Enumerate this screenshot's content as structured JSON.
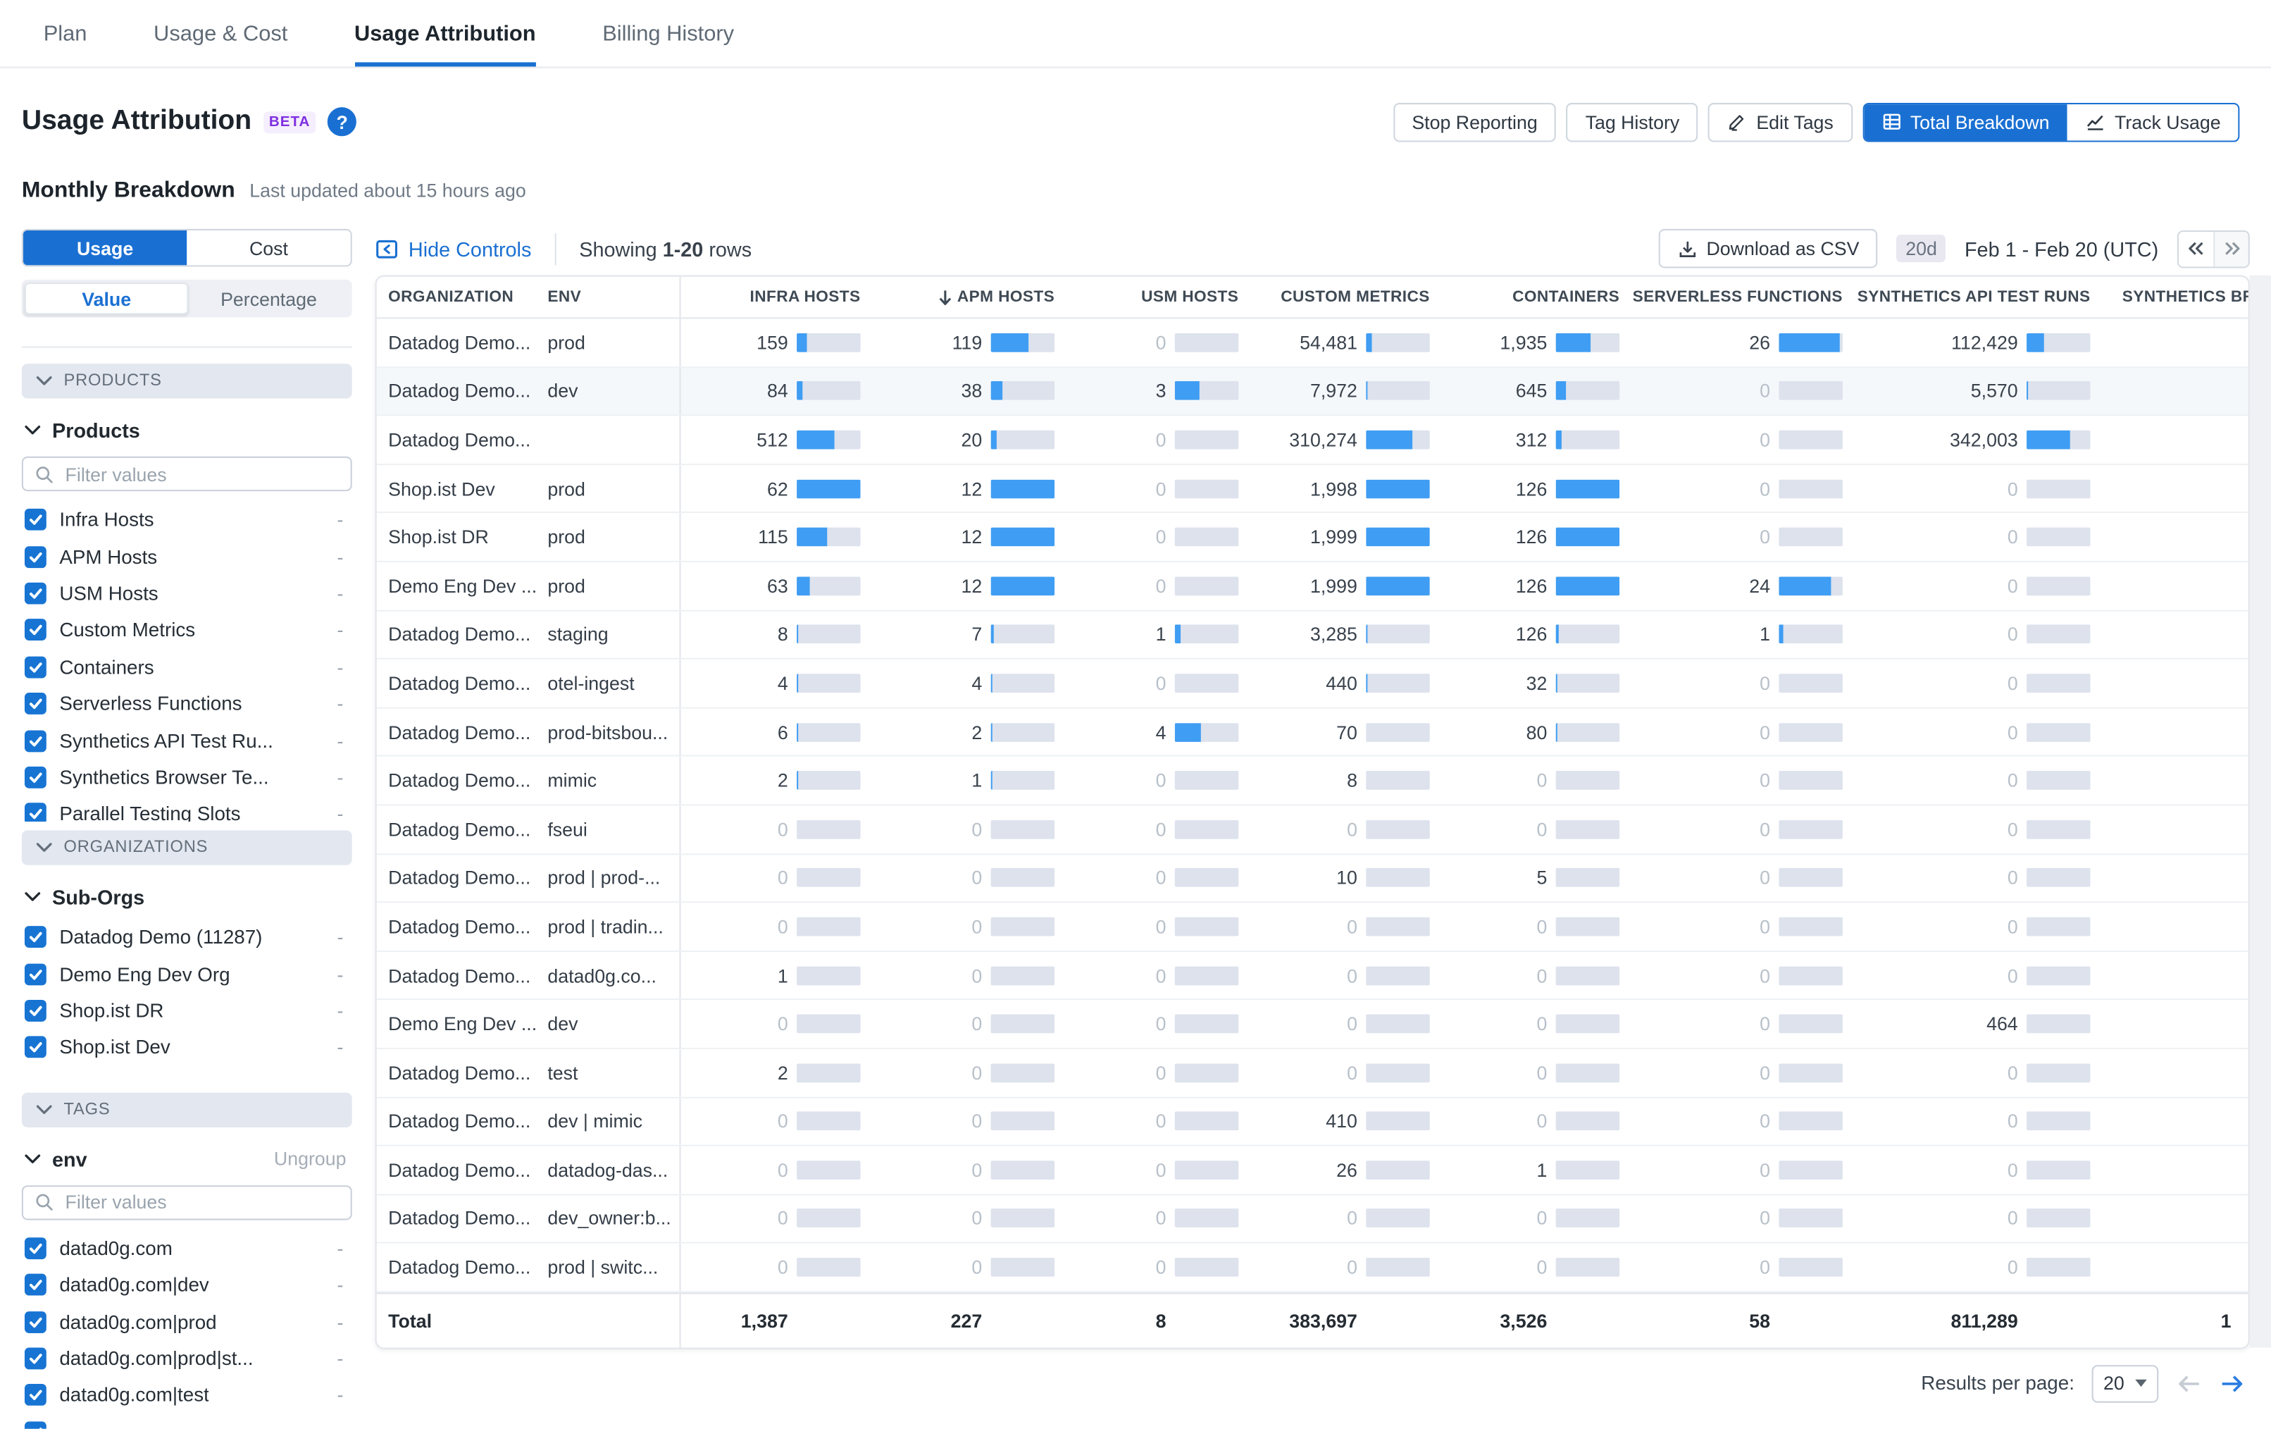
{
  "nav": {
    "tabs": [
      {
        "label": "Plan",
        "active": false
      },
      {
        "label": "Usage & Cost",
        "active": false
      },
      {
        "label": "Usage Attribution",
        "active": true
      },
      {
        "label": "Billing History",
        "active": false
      }
    ]
  },
  "header": {
    "title": "Usage Attribution",
    "beta_badge": "BETA",
    "actions": {
      "stop_reporting": "Stop Reporting",
      "tag_history": "Tag History",
      "edit_tags": "Edit Tags",
      "total_breakdown": "Total Breakdown",
      "track_usage": "Track Usage"
    }
  },
  "subheader": {
    "title": "Monthly Breakdown",
    "last_updated": "Last updated about 15 hours ago"
  },
  "controls": {
    "hide_controls": "Hide Controls",
    "showing_prefix": "Showing",
    "showing_range": "1-20",
    "showing_suffix": "rows",
    "download_csv": "Download as CSV",
    "period_badge": "20d",
    "date_range": "Feb 1 - Feb 20 (UTC)"
  },
  "sidebar": {
    "mode_toggle": {
      "active": "Usage",
      "inactive": "Cost"
    },
    "display_toggle": {
      "active": "Value",
      "inactive": "Percentage"
    },
    "sections": {
      "products_header": "PRODUCTS",
      "organizations_header": "ORGANIZATIONS",
      "tags_header": "TAGS"
    },
    "products": {
      "title": "Products",
      "filter_placeholder": "Filter values",
      "items": [
        {
          "label": "Infra Hosts",
          "dash": "-"
        },
        {
          "label": "APM Hosts",
          "dash": "-"
        },
        {
          "label": "USM Hosts",
          "dash": "-"
        },
        {
          "label": "Custom Metrics",
          "dash": "-"
        },
        {
          "label": "Containers",
          "dash": "-"
        },
        {
          "label": "Serverless Functions",
          "dash": "-"
        },
        {
          "label": "Synthetics API Test Ru...",
          "dash": "-"
        },
        {
          "label": "Synthetics Browser Te...",
          "dash": "-"
        },
        {
          "label": "Parallel Testing Slots",
          "dash": "-"
        }
      ]
    },
    "orgs": {
      "title": "Sub-Orgs",
      "items": [
        {
          "label": "Datadog Demo (11287)",
          "dash": "-"
        },
        {
          "label": "Demo Eng Dev Org",
          "dash": "-"
        },
        {
          "label": "Shop.ist DR",
          "dash": "-"
        },
        {
          "label": "Shop.ist Dev",
          "dash": "-"
        }
      ]
    },
    "envs": {
      "title": "env",
      "ungroup": "Ungroup",
      "filter_placeholder": "Filter values",
      "items": [
        {
          "label": "datad0g.com",
          "dash": "-"
        },
        {
          "label": "datad0g.com|dev",
          "dash": "-"
        },
        {
          "label": "datad0g.com|prod",
          "dash": "-"
        },
        {
          "label": "datad0g.com|prod|st...",
          "dash": "-"
        },
        {
          "label": "datad0g.com|test",
          "dash": "-"
        },
        {
          "label": "",
          "dash": ""
        }
      ]
    }
  },
  "table": {
    "columns": [
      {
        "label": "ORGANIZATION",
        "align": "left"
      },
      {
        "label": "ENV",
        "align": "left"
      },
      {
        "label": "INFRA HOSTS"
      },
      {
        "label": "APM HOSTS",
        "sorted": true
      },
      {
        "label": "USM HOSTS"
      },
      {
        "label": "CUSTOM METRICS"
      },
      {
        "label": "CONTAINERS"
      },
      {
        "label": "SERVERLESS FUNCTIONS"
      },
      {
        "label": "SYNTHETICS API TEST RUNS"
      },
      {
        "label": "SYNTHETICS BRO",
        "align": "left"
      }
    ],
    "rows": [
      {
        "org": "Datadog Demo...",
        "env": "prod",
        "cells": [
          {
            "v": "159",
            "p": 16
          },
          {
            "v": "119",
            "p": 58
          },
          {
            "v": "0",
            "p": 0
          },
          {
            "v": "54,481",
            "p": 10
          },
          {
            "v": "1,935",
            "p": 55
          },
          {
            "v": "26",
            "p": 95
          },
          {
            "v": "112,429",
            "p": 27
          },
          {
            "v": "",
            "p": 0
          }
        ]
      },
      {
        "org": "Datadog Demo...",
        "env": "dev",
        "cells": [
          {
            "v": "84",
            "p": 8
          },
          {
            "v": "38",
            "p": 18
          },
          {
            "v": "3",
            "p": 38
          },
          {
            "v": "7,972",
            "p": 2
          },
          {
            "v": "645",
            "p": 17
          },
          {
            "v": "0",
            "p": 0
          },
          {
            "v": "5,570",
            "p": 3
          },
          {
            "v": "",
            "p": 0
          }
        ]
      },
      {
        "org": "Datadog Demo...",
        "env": "",
        "cells": [
          {
            "v": "512",
            "p": 58
          },
          {
            "v": "20",
            "p": 8
          },
          {
            "v": "0",
            "p": 0
          },
          {
            "v": "310,274",
            "p": 72
          },
          {
            "v": "312",
            "p": 9
          },
          {
            "v": "0",
            "p": 0
          },
          {
            "v": "342,003",
            "p": 68
          },
          {
            "v": "",
            "p": 0
          }
        ]
      },
      {
        "org": "Shop.ist Dev",
        "env": "prod",
        "cells": [
          {
            "v": "62",
            "p": 100
          },
          {
            "v": "12",
            "p": 100
          },
          {
            "v": "0",
            "p": 0
          },
          {
            "v": "1,998",
            "p": 100
          },
          {
            "v": "126",
            "p": 100
          },
          {
            "v": "0",
            "p": 0
          },
          {
            "v": "0",
            "p": 0
          },
          {
            "v": "",
            "p": 0
          }
        ]
      },
      {
        "org": "Shop.ist DR",
        "env": "prod",
        "cells": [
          {
            "v": "115",
            "p": 48
          },
          {
            "v": "12",
            "p": 100
          },
          {
            "v": "0",
            "p": 0
          },
          {
            "v": "1,999",
            "p": 100
          },
          {
            "v": "126",
            "p": 100
          },
          {
            "v": "0",
            "p": 0
          },
          {
            "v": "0",
            "p": 0
          },
          {
            "v": "",
            "p": 0
          }
        ]
      },
      {
        "org": "Demo Eng Dev ...",
        "env": "prod",
        "cells": [
          {
            "v": "63",
            "p": 20
          },
          {
            "v": "12",
            "p": 100
          },
          {
            "v": "0",
            "p": 0
          },
          {
            "v": "1,999",
            "p": 100
          },
          {
            "v": "126",
            "p": 100
          },
          {
            "v": "24",
            "p": 82
          },
          {
            "v": "0",
            "p": 0
          },
          {
            "v": "",
            "p": 0
          }
        ]
      },
      {
        "org": "Datadog Demo...",
        "env": "staging",
        "cells": [
          {
            "v": "8",
            "p": 2
          },
          {
            "v": "7",
            "p": 5
          },
          {
            "v": "1",
            "p": 10
          },
          {
            "v": "3,285",
            "p": 1
          },
          {
            "v": "126",
            "p": 4
          },
          {
            "v": "1",
            "p": 6
          },
          {
            "v": "0",
            "p": 0
          },
          {
            "v": "",
            "p": 0
          }
        ]
      },
      {
        "org": "Datadog Demo...",
        "env": "otel-ingest",
        "cells": [
          {
            "v": "4",
            "p": 2
          },
          {
            "v": "4",
            "p": 3
          },
          {
            "v": "0",
            "p": 0
          },
          {
            "v": "440",
            "p": 1
          },
          {
            "v": "32",
            "p": 1
          },
          {
            "v": "0",
            "p": 0
          },
          {
            "v": "0",
            "p": 0
          },
          {
            "v": "",
            "p": 0
          }
        ]
      },
      {
        "org": "Datadog Demo...",
        "env": "prod-bitsbou...",
        "cells": [
          {
            "v": "6",
            "p": 1
          },
          {
            "v": "2",
            "p": 1
          },
          {
            "v": "4",
            "p": 40
          },
          {
            "v": "70",
            "p": 0
          },
          {
            "v": "80",
            "p": 2
          },
          {
            "v": "0",
            "p": 0
          },
          {
            "v": "0",
            "p": 0
          },
          {
            "v": "",
            "p": 0
          }
        ]
      },
      {
        "org": "Datadog Demo...",
        "env": "mimic",
        "cells": [
          {
            "v": "2",
            "p": 1
          },
          {
            "v": "1",
            "p": 1
          },
          {
            "v": "0",
            "p": 0
          },
          {
            "v": "8",
            "p": 0
          },
          {
            "v": "0",
            "p": 0
          },
          {
            "v": "0",
            "p": 0
          },
          {
            "v": "0",
            "p": 0
          },
          {
            "v": "",
            "p": 0
          }
        ]
      },
      {
        "org": "Datadog Demo...",
        "env": "fseui",
        "cells": [
          {
            "v": "0",
            "p": 0
          },
          {
            "v": "0",
            "p": 0
          },
          {
            "v": "0",
            "p": 0
          },
          {
            "v": "0",
            "p": 0
          },
          {
            "v": "0",
            "p": 0
          },
          {
            "v": "0",
            "p": 0
          },
          {
            "v": "0",
            "p": 0
          },
          {
            "v": "",
            "p": 0
          }
        ]
      },
      {
        "org": "Datadog Demo...",
        "env": "prod | prod-...",
        "cells": [
          {
            "v": "0",
            "p": 0
          },
          {
            "v": "0",
            "p": 0
          },
          {
            "v": "0",
            "p": 0
          },
          {
            "v": "10",
            "p": 0
          },
          {
            "v": "5",
            "p": 0
          },
          {
            "v": "0",
            "p": 0
          },
          {
            "v": "0",
            "p": 0
          },
          {
            "v": "",
            "p": 0
          }
        ]
      },
      {
        "org": "Datadog Demo...",
        "env": "prod | tradin...",
        "cells": [
          {
            "v": "0",
            "p": 0
          },
          {
            "v": "0",
            "p": 0
          },
          {
            "v": "0",
            "p": 0
          },
          {
            "v": "0",
            "p": 0
          },
          {
            "v": "0",
            "p": 0
          },
          {
            "v": "0",
            "p": 0
          },
          {
            "v": "0",
            "p": 0
          },
          {
            "v": "",
            "p": 0
          }
        ]
      },
      {
        "org": "Datadog Demo...",
        "env": "datad0g.co...",
        "cells": [
          {
            "v": "1",
            "p": 0
          },
          {
            "v": "0",
            "p": 0
          },
          {
            "v": "0",
            "p": 0
          },
          {
            "v": "0",
            "p": 0
          },
          {
            "v": "0",
            "p": 0
          },
          {
            "v": "0",
            "p": 0
          },
          {
            "v": "0",
            "p": 0
          },
          {
            "v": "",
            "p": 0
          }
        ]
      },
      {
        "org": "Demo Eng Dev ...",
        "env": "dev",
        "cells": [
          {
            "v": "0",
            "p": 0
          },
          {
            "v": "0",
            "p": 0
          },
          {
            "v": "0",
            "p": 0
          },
          {
            "v": "0",
            "p": 0
          },
          {
            "v": "0",
            "p": 0
          },
          {
            "v": "0",
            "p": 0
          },
          {
            "v": "464",
            "p": 0
          },
          {
            "v": "",
            "p": 0
          }
        ]
      },
      {
        "org": "Datadog Demo...",
        "env": "test",
        "cells": [
          {
            "v": "2",
            "p": 0
          },
          {
            "v": "0",
            "p": 0
          },
          {
            "v": "0",
            "p": 0
          },
          {
            "v": "0",
            "p": 0
          },
          {
            "v": "0",
            "p": 0
          },
          {
            "v": "0",
            "p": 0
          },
          {
            "v": "0",
            "p": 0
          },
          {
            "v": "",
            "p": 0
          }
        ]
      },
      {
        "org": "Datadog Demo...",
        "env": "dev | mimic",
        "cells": [
          {
            "v": "0",
            "p": 0
          },
          {
            "v": "0",
            "p": 0
          },
          {
            "v": "0",
            "p": 0
          },
          {
            "v": "410",
            "p": 0
          },
          {
            "v": "0",
            "p": 0
          },
          {
            "v": "0",
            "p": 0
          },
          {
            "v": "0",
            "p": 0
          },
          {
            "v": "",
            "p": 0
          }
        ]
      },
      {
        "org": "Datadog Demo...",
        "env": "datadog-das...",
        "cells": [
          {
            "v": "0",
            "p": 0
          },
          {
            "v": "0",
            "p": 0
          },
          {
            "v": "0",
            "p": 0
          },
          {
            "v": "26",
            "p": 0
          },
          {
            "v": "1",
            "p": 0
          },
          {
            "v": "0",
            "p": 0
          },
          {
            "v": "0",
            "p": 0
          },
          {
            "v": "",
            "p": 0
          }
        ]
      },
      {
        "org": "Datadog Demo...",
        "env": "dev_owner:b...",
        "cells": [
          {
            "v": "0",
            "p": 0
          },
          {
            "v": "0",
            "p": 0
          },
          {
            "v": "0",
            "p": 0
          },
          {
            "v": "0",
            "p": 0
          },
          {
            "v": "0",
            "p": 0
          },
          {
            "v": "0",
            "p": 0
          },
          {
            "v": "0",
            "p": 0
          },
          {
            "v": "",
            "p": 0
          }
        ]
      },
      {
        "org": "Datadog Demo...",
        "env": "prod | switc...",
        "cells": [
          {
            "v": "0",
            "p": 0
          },
          {
            "v": "0",
            "p": 0
          },
          {
            "v": "0",
            "p": 0
          },
          {
            "v": "0",
            "p": 0
          },
          {
            "v": "0",
            "p": 0
          },
          {
            "v": "0",
            "p": 0
          },
          {
            "v": "0",
            "p": 0
          },
          {
            "v": "",
            "p": 0
          }
        ]
      }
    ],
    "total": {
      "label": "Total",
      "cells": [
        "1,387",
        "227",
        "8",
        "383,697",
        "3,526",
        "58",
        "811,289",
        "1"
      ]
    }
  },
  "pagination": {
    "label": "Results per page:",
    "per_page": "20"
  },
  "colors": {
    "accent_blue": "#1a70d2",
    "bar_fill": "#3f9df3",
    "bar_track": "#dde2ed",
    "beta_purple": "#7f2fe0"
  }
}
